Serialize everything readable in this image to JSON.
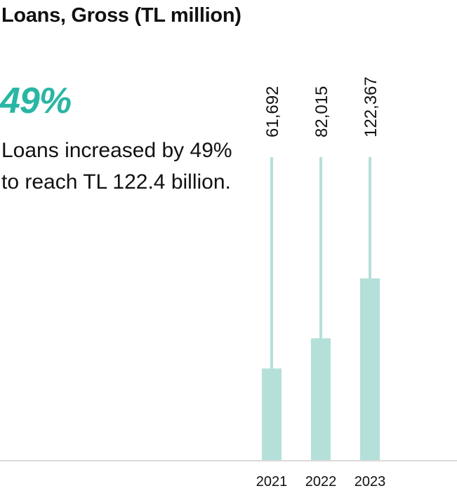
{
  "colors": {
    "accent": "#2ab6a4",
    "bar": "#b5e0da",
    "axis": "#d9d9d9"
  },
  "chart_data": {
    "type": "bar",
    "title": "Loans, Gross (TL million)",
    "categories": [
      "2021",
      "2022",
      "2023"
    ],
    "values": [
      61692,
      82015,
      122367
    ],
    "value_labels": [
      "61,692",
      "82,015",
      "122,367"
    ],
    "ylim": [
      0,
      205000
    ],
    "grid": false,
    "xlabel": "",
    "ylabel": ""
  },
  "highlight": {
    "value": "49%",
    "description": "Loans increased by 49% to reach TL 122.4 billion."
  }
}
